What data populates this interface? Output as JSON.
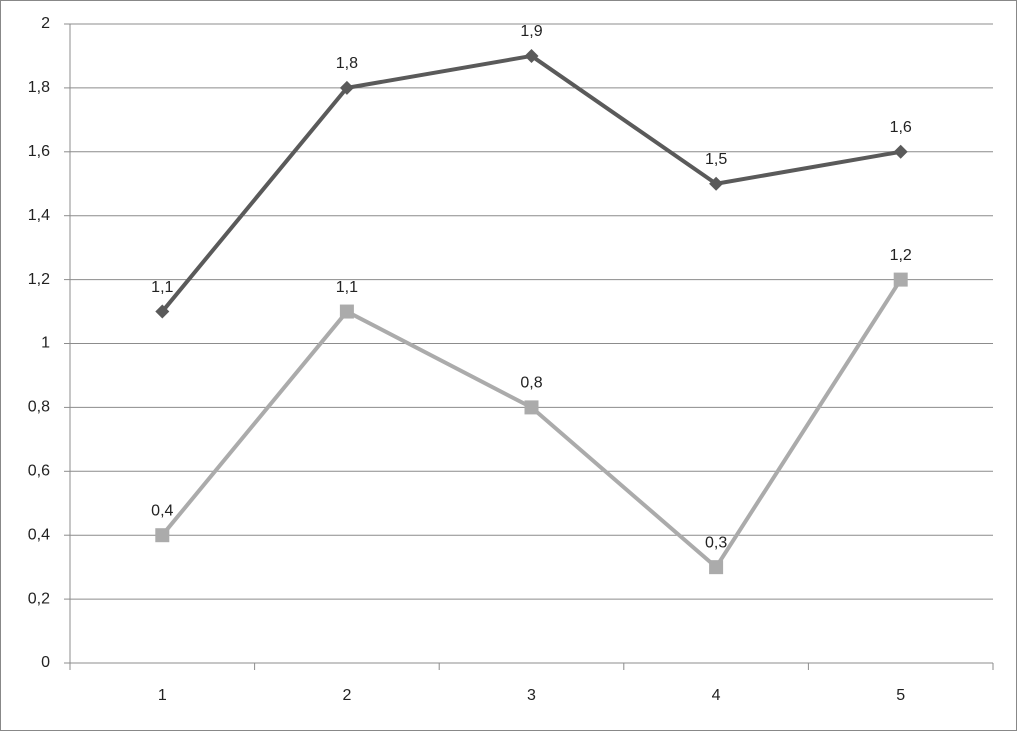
{
  "chart_data": {
    "type": "line",
    "categories": [
      "1",
      "2",
      "3",
      "4",
      "5"
    ],
    "series": [
      {
        "color": "#5a5a5a",
        "marker": "diamond",
        "values": [
          1.1,
          1.8,
          1.9,
          1.5,
          1.6
        ],
        "value_labels": [
          "1,1",
          "1,8",
          "1,9",
          "1,5",
          "1,6"
        ]
      },
      {
        "color": "#ababab",
        "marker": "square",
        "values": [
          0.4,
          1.1,
          0.8,
          0.3,
          1.2
        ],
        "value_labels": [
          "0,4",
          "1,1",
          "0,8",
          "0,3",
          "1,2"
        ]
      }
    ],
    "ylim": [
      0,
      2
    ],
    "yticks": [
      0,
      {
        "value": 0.2,
        "label": "0,2"
      },
      {
        "value": 0.4,
        "label": "0,4"
      },
      {
        "value": 0.6,
        "label": "0,6"
      },
      {
        "value": 0.8,
        "label": "0,8"
      },
      1,
      {
        "value": 1.2,
        "label": "1,2"
      },
      {
        "value": 1.4,
        "label": "1,4"
      },
      {
        "value": 1.6,
        "label": "1,6"
      },
      {
        "value": 1.8,
        "label": "1,8"
      },
      2
    ],
    "grid": true
  }
}
